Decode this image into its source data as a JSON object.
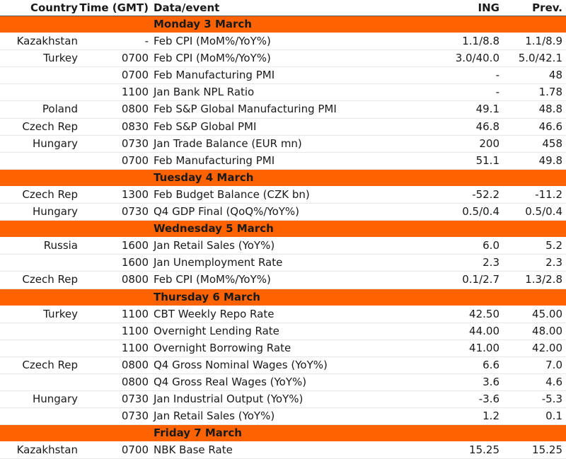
{
  "headers": {
    "country": "Country",
    "time": "Time (GMT)",
    "event": "Data/event",
    "ing": "ING",
    "prev": "Prev."
  },
  "rows": [
    {
      "type": "day",
      "label": "Monday 3 March"
    },
    {
      "type": "data",
      "country": "Kazakhstan",
      "time": "-",
      "event": "Feb CPI (MoM%/YoY%)",
      "ing": "1.1/8.8",
      "prev": "1.1/8.9"
    },
    {
      "type": "data",
      "country": "Turkey",
      "time": "0700",
      "event": "Feb CPI (MoM%/YoY%)",
      "ing": "3.0/40.0",
      "prev": "5.0/42.1"
    },
    {
      "type": "data",
      "country": "",
      "time": "0700",
      "event": "Feb Manufacturing PMI",
      "ing": "-",
      "prev": "48"
    },
    {
      "type": "data",
      "country": "",
      "time": "1100",
      "event": "Jan Bank NPL Ratio",
      "ing": "-",
      "prev": "1.78"
    },
    {
      "type": "data",
      "country": "Poland",
      "time": "0800",
      "event": "Feb S&P Global Manufacturing PMI",
      "ing": "49.1",
      "prev": "48.8"
    },
    {
      "type": "data",
      "country": "Czech Rep",
      "time": "0830",
      "event": "Feb S&P Global PMI",
      "ing": "46.8",
      "prev": "46.6"
    },
    {
      "type": "data",
      "country": "Hungary",
      "time": "0730",
      "event": "Jan Trade Balance (EUR mn)",
      "ing": "200",
      "prev": "458"
    },
    {
      "type": "data",
      "country": "",
      "time": "0700",
      "event": "Feb Manufacturing PMI",
      "ing": "51.1",
      "prev": "49.8"
    },
    {
      "type": "day",
      "label": "Tuesday 4 March"
    },
    {
      "type": "data",
      "country": "Czech Rep",
      "time": "1300",
      "event": "Feb Budget Balance (CZK bn)",
      "ing": "-52.2",
      "prev": "-11.2"
    },
    {
      "type": "data",
      "country": "Hungary",
      "time": "0730",
      "event": "Q4 GDP Final (QoQ%/YoY%)",
      "ing": "0.5/0.4",
      "prev": "0.5/0.4"
    },
    {
      "type": "day",
      "label": "Wednesday 5 March"
    },
    {
      "type": "data",
      "country": "Russia",
      "time": "1600",
      "event": "Jan Retail Sales (YoY%)",
      "ing": "6.0",
      "prev": "5.2"
    },
    {
      "type": "data",
      "country": "",
      "time": "1600",
      "event": "Jan Unemployment Rate",
      "ing": "2.3",
      "prev": "2.3"
    },
    {
      "type": "data",
      "country": "Czech Rep",
      "time": "0800",
      "event": "Feb CPI (MoM%/YoY%)",
      "ing": "0.1/2.7",
      "prev": "1.3/2.8"
    },
    {
      "type": "day",
      "label": "Thursday 6 March"
    },
    {
      "type": "data",
      "country": "Turkey",
      "time": "1100",
      "event": "CBT Weekly Repo Rate",
      "ing": "42.50",
      "prev": "45.00"
    },
    {
      "type": "data",
      "country": "",
      "time": "1100",
      "event": "Overnight Lending Rate",
      "ing": "44.00",
      "prev": "48.00"
    },
    {
      "type": "data",
      "country": "",
      "time": "1100",
      "event": "Overnight Borrowing Rate",
      "ing": "41.00",
      "prev": "42.00"
    },
    {
      "type": "data",
      "country": "Czech Rep",
      "time": "0800",
      "event": "Q4 Gross Nominal Wages (YoY%)",
      "ing": "6.6",
      "prev": "7.0"
    },
    {
      "type": "data",
      "country": "",
      "time": "0800",
      "event": "Q4 Gross Real Wages (YoY%)",
      "ing": "3.6",
      "prev": "4.6"
    },
    {
      "type": "data",
      "country": "Hungary",
      "time": "0730",
      "event": "Jan Industrial Output (YoY%)",
      "ing": "-3.6",
      "prev": "-5.3"
    },
    {
      "type": "data",
      "country": "",
      "time": "0730",
      "event": "Jan Retail Sales (YoY%)",
      "ing": "1.2",
      "prev": "0.1"
    },
    {
      "type": "day",
      "label": "Friday 7 March"
    },
    {
      "type": "data",
      "country": "Kazakhstan",
      "time": "0700",
      "event": "NBK Base Rate",
      "ing": "15.25",
      "prev": "15.25"
    }
  ]
}
